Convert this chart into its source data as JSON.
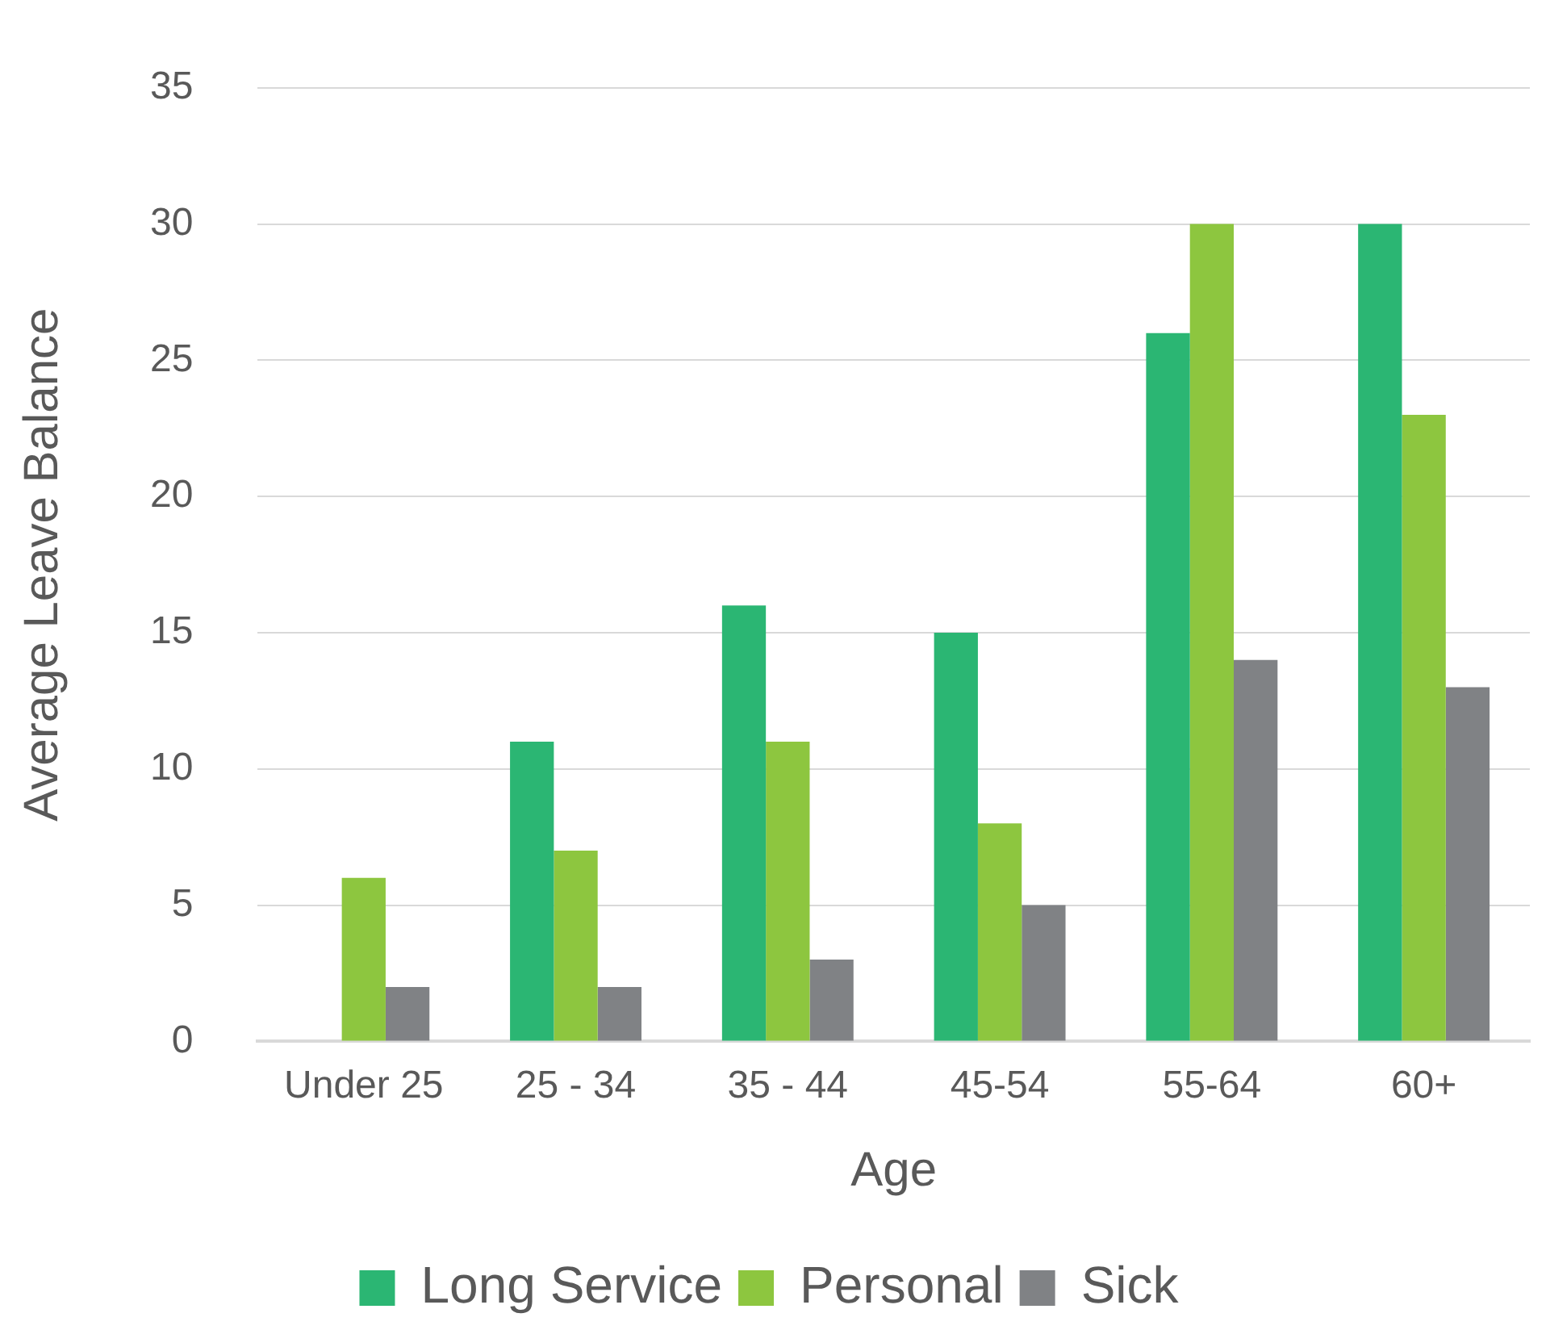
{
  "chart_data": {
    "type": "bar",
    "xlabel": "Age",
    "ylabel": "Average Leave Balance",
    "categories": [
      "Under 25",
      "25 - 34",
      "35 - 44",
      "45-54",
      "55-64",
      "60+"
    ],
    "series": [
      {
        "name": "Long Service",
        "color": "#2bb673",
        "values": [
          0,
          11,
          16,
          15,
          26,
          30
        ]
      },
      {
        "name": "Personal",
        "color": "#8dc63f",
        "values": [
          6,
          7,
          11,
          8,
          30,
          23
        ]
      },
      {
        "name": "Sick",
        "color": "#808285",
        "values": [
          2,
          2,
          3,
          5,
          14,
          13
        ]
      }
    ],
    "ylim": [
      0,
      35
    ],
    "yticks": [
      0,
      5,
      10,
      15,
      20,
      25,
      30,
      35
    ],
    "grid": "y",
    "legend": "bottom"
  }
}
